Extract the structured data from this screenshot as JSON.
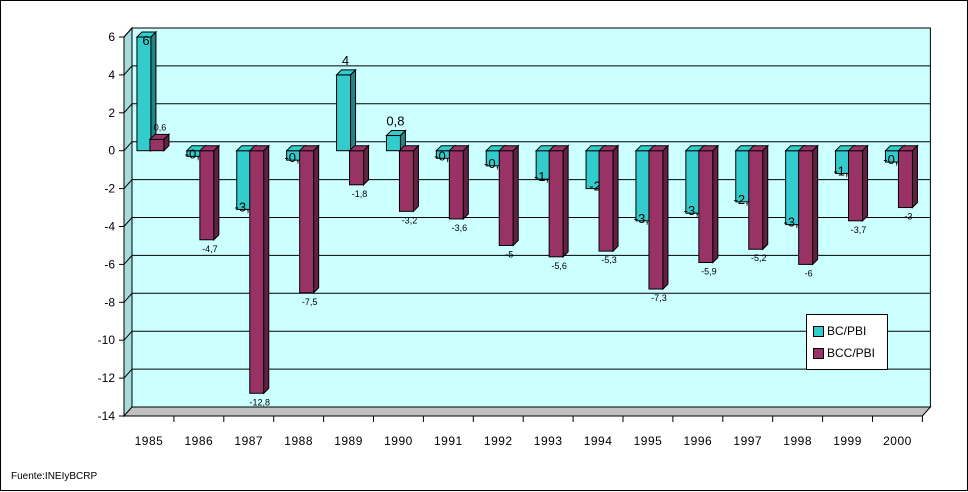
{
  "chart_data": {
    "type": "bar",
    "categories": [
      "1985",
      "1986",
      "1987",
      "1988",
      "1989",
      "1990",
      "1991",
      "1992",
      "1993",
      "1994",
      "1995",
      "1996",
      "1997",
      "1998",
      "1999",
      "2000"
    ],
    "series": [
      {
        "name": "BC/PBI",
        "color": "#33cccc",
        "values": [
          6,
          -0.3,
          -3.1,
          -0.5,
          4,
          0.8,
          -0.4,
          -0.8,
          -1.5,
          -2,
          -3.7,
          -3.3,
          -2.7,
          -3.9,
          -1.2,
          -0.6
        ],
        "labels": [
          "6",
          "-0,3",
          "-3,1",
          "-0,5",
          "4",
          "0,8",
          "-0,4",
          "-0,8",
          "-1,5",
          "-2",
          "-3,7",
          "-3,3",
          "-2,7",
          "-3,9",
          "-1,2",
          "-0,6"
        ]
      },
      {
        "name": "BCC/PBI",
        "color": "#993366",
        "values": [
          0.6,
          -4.7,
          -12.8,
          -7.5,
          -1.8,
          -3.2,
          -3.6,
          -5,
          -5.6,
          -5.3,
          -7.3,
          -5.9,
          -5.2,
          -6,
          -3.7,
          -3
        ],
        "labels": [
          "0,6",
          "-4,7",
          "-12,8",
          "-7,5",
          "-1,8",
          "-3,2",
          "-3,6",
          "-5",
          "-5,6",
          "-5,3",
          "-7,3",
          "-5,9",
          "-5,2",
          "-6",
          "-3,7",
          "-3"
        ]
      }
    ],
    "yticks": [
      "6",
      "4",
      "2",
      "0",
      "-2",
      "-4",
      "-6",
      "-8",
      "-10",
      "-12",
      "-14"
    ],
    "ylim": [
      -14,
      6
    ],
    "grid": true,
    "legend_position": "right",
    "plot_background": "#ccffff"
  },
  "legend": {
    "item1": "BC/PBI",
    "item2": "BCC/PBI"
  },
  "source": "Fuente:INEIyBCRP"
}
